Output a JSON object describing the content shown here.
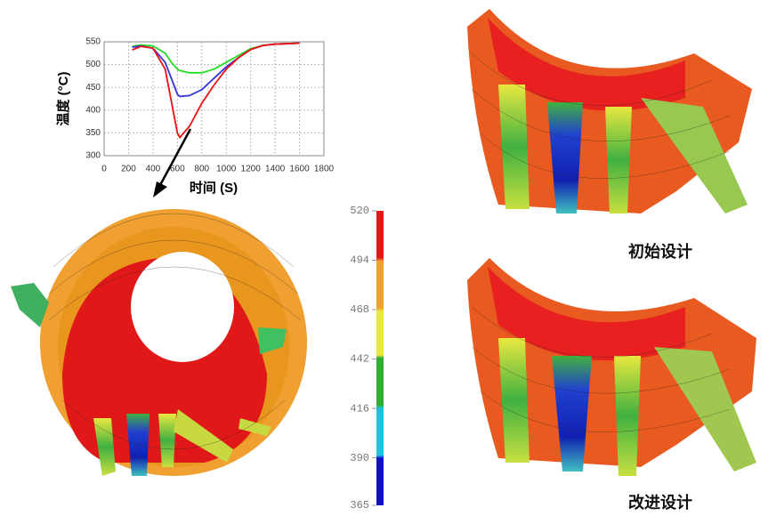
{
  "chart_data": {
    "type": "line",
    "xlabel": "时间 (S)",
    "ylabel": "温度 (°C)",
    "x": [
      230,
      300,
      400,
      500,
      550,
      600,
      620,
      700,
      800,
      900,
      1000,
      1100,
      1200,
      1300,
      1400,
      1500,
      1600
    ],
    "series": [
      {
        "color": "#22dd22",
        "values": [
          540,
          543,
          541,
          525,
          505,
          490,
          487,
          482,
          482,
          490,
          505,
          520,
          535,
          542,
          545,
          546,
          547
        ]
      },
      {
        "color": "#3333dd",
        "values": [
          538,
          541,
          536,
          505,
          470,
          435,
          430,
          432,
          445,
          470,
          495,
          515,
          533,
          542,
          545,
          546,
          547
        ]
      },
      {
        "color": "#ee1111",
        "values": [
          532,
          540,
          536,
          490,
          420,
          350,
          340,
          365,
          415,
          455,
          490,
          515,
          533,
          542,
          545,
          546,
          547
        ]
      }
    ],
    "xlim": [
      0,
      1800
    ],
    "xticks": [
      0,
      200,
      400,
      600,
      800,
      1000,
      1200,
      1400,
      1600,
      1800
    ],
    "ylim": [
      300,
      550
    ],
    "yticks": [
      300,
      350,
      400,
      450,
      500,
      550
    ],
    "grid": true
  },
  "colorbar": {
    "ticks": [
      365,
      390,
      416,
      442,
      468,
      494,
      520
    ]
  },
  "captions": {
    "initial": "初始设计",
    "improved": "改进设计"
  }
}
